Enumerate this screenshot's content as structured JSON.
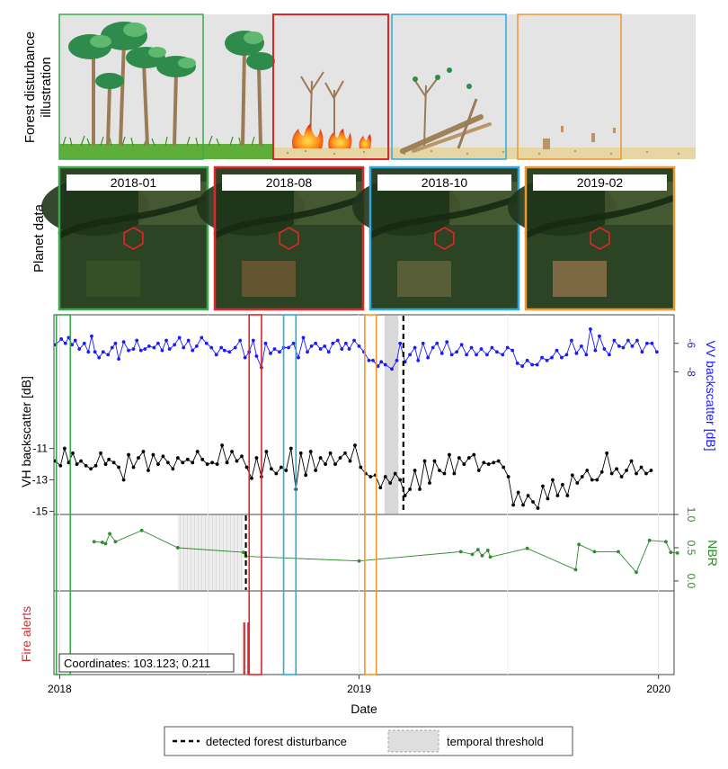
{
  "illustration": {
    "row_label_line1": "Forest disturbance",
    "row_label_line2": "illustration"
  },
  "planet": {
    "row_label": "Planet data",
    "panels": [
      {
        "date": "2018-01",
        "color": "#3aa84a"
      },
      {
        "date": "2018-08",
        "color": "#e0262b"
      },
      {
        "date": "2018-10",
        "color": "#2ea9df"
      },
      {
        "date": "2019-02",
        "color": "#f0962e"
      }
    ]
  },
  "colors": {
    "vh": "#000000",
    "vv": "#1a1aff",
    "nbr": "#2e8b2e",
    "fire": "#e0262b",
    "green_box": "#3aa84a",
    "red_box": "#e0262b",
    "blue_box": "#2ea9df",
    "orange_box": "#f0962e"
  },
  "chart_data": {
    "type": "line",
    "xlabel": "Date",
    "x_ticks": [
      "2018",
      "2019",
      "2020"
    ],
    "xlim": [
      "2017-12-25",
      "2020-01-20"
    ],
    "date_windows": [
      {
        "color": "green",
        "start": "2017-12-28",
        "end": "2018-01-14"
      },
      {
        "color": "red",
        "start": "2018-08-20",
        "end": "2018-09-04"
      },
      {
        "color": "blue",
        "start": "2018-10-01",
        "end": "2018-10-16"
      },
      {
        "color": "orange",
        "start": "2019-01-08",
        "end": "2019-01-22"
      }
    ],
    "sar": {
      "vh_label": "VH backscatter [dB]",
      "vv_label": "VV backscatter [dB]",
      "vh_ticks": [
        -11,
        -13,
        -15
      ],
      "vv_ticks": [
        -6,
        -8
      ],
      "vh_ylim": [
        -15.2,
        -2.5
      ],
      "vv_ylim": [
        -18,
        -4
      ],
      "temporal_threshold": {
        "start": "2019-02-01",
        "end": "2019-02-18"
      },
      "detected_disturbance": "2019-02-24",
      "vv_series": [
        [
          "2017-12-27",
          -6.1
        ],
        [
          "2018-01-03",
          -5.7
        ],
        [
          "2018-01-08",
          -6.0
        ],
        [
          "2018-01-12",
          -5.6
        ],
        [
          "2018-01-16",
          -6.1
        ],
        [
          "2018-01-20",
          -5.8
        ],
        [
          "2018-01-25",
          -6.4
        ],
        [
          "2018-01-31",
          -6.0
        ],
        [
          "2018-02-05",
          -6.6
        ],
        [
          "2018-02-09",
          -5.5
        ],
        [
          "2018-02-13",
          -6.6
        ],
        [
          "2018-02-18",
          -7.0
        ],
        [
          "2018-02-23",
          -6.6
        ],
        [
          "2018-03-01",
          -6.8
        ],
        [
          "2018-03-06",
          -6.3
        ],
        [
          "2018-03-10",
          -6.0
        ],
        [
          "2018-03-14",
          -7.1
        ],
        [
          "2018-03-20",
          -5.9
        ],
        [
          "2018-03-26",
          -6.5
        ],
        [
          "2018-04-01",
          -6.4
        ],
        [
          "2018-04-05",
          -5.8
        ],
        [
          "2018-04-10",
          -6.5
        ],
        [
          "2018-04-15",
          -6.4
        ],
        [
          "2018-04-20",
          -6.2
        ],
        [
          "2018-04-26",
          -6.3
        ],
        [
          "2018-05-01",
          -6.0
        ],
        [
          "2018-05-06",
          -6.5
        ],
        [
          "2018-05-11",
          -5.8
        ],
        [
          "2018-05-15",
          -6.4
        ],
        [
          "2018-05-21",
          -6.1
        ],
        [
          "2018-05-27",
          -5.6
        ],
        [
          "2018-06-01",
          -6.3
        ],
        [
          "2018-06-07",
          -5.8
        ],
        [
          "2018-06-12",
          -6.5
        ],
        [
          "2018-06-17",
          -6.2
        ],
        [
          "2018-06-23",
          -5.6
        ],
        [
          "2018-06-29",
          -6.0
        ],
        [
          "2018-07-05",
          -6.3
        ],
        [
          "2018-07-11",
          -6.8
        ],
        [
          "2018-07-17",
          -6.3
        ],
        [
          "2018-07-21",
          -6.5
        ],
        [
          "2018-07-27",
          -6.6
        ],
        [
          "2018-08-03",
          -6.3
        ],
        [
          "2018-08-09",
          -5.8
        ],
        [
          "2018-08-15",
          -7.0
        ],
        [
          "2018-08-20",
          -6.6
        ],
        [
          "2018-08-25",
          -5.8
        ],
        [
          "2018-08-29",
          -6.9
        ],
        [
          "2018-09-04",
          -7.7
        ],
        [
          "2018-09-09",
          -6.0
        ],
        [
          "2018-09-15",
          -6.7
        ],
        [
          "2018-09-20",
          -6.4
        ],
        [
          "2018-09-26",
          -6.6
        ],
        [
          "2018-10-01",
          -6.3
        ],
        [
          "2018-10-07",
          -6.3
        ],
        [
          "2018-10-13",
          -6.0
        ],
        [
          "2018-10-19",
          -7.0
        ],
        [
          "2018-10-25",
          -5.6
        ],
        [
          "2018-10-30",
          -6.6
        ],
        [
          "2018-11-04",
          -6.2
        ],
        [
          "2018-11-09",
          -6.0
        ],
        [
          "2018-11-15",
          -6.4
        ],
        [
          "2018-11-20",
          -6.2
        ],
        [
          "2018-11-25",
          -6.6
        ],
        [
          "2018-11-30",
          -6.0
        ],
        [
          "2018-12-06",
          -5.8
        ],
        [
          "2018-12-11",
          -6.4
        ],
        [
          "2018-12-16",
          -6.0
        ],
        [
          "2018-12-20",
          -6.4
        ],
        [
          "2018-12-26",
          -5.8
        ],
        [
          "2019-01-01",
          -6.2
        ],
        [
          "2019-01-07",
          -6.6
        ],
        [
          "2019-01-13",
          -7.2
        ],
        [
          "2019-01-18",
          -7.2
        ],
        [
          "2019-01-24",
          -7.6
        ],
        [
          "2019-01-28",
          -7.3
        ],
        [
          "2019-02-02",
          -7.5
        ],
        [
          "2019-02-10",
          -7.8
        ],
        [
          "2019-02-16",
          -7.2
        ],
        [
          "2019-02-20",
          -6.0
        ],
        [
          "2019-02-26",
          -7.3
        ],
        [
          "2019-03-04",
          -6.8
        ],
        [
          "2019-03-10",
          -6.3
        ],
        [
          "2019-03-14",
          -7.2
        ],
        [
          "2019-03-20",
          -6.0
        ],
        [
          "2019-03-26",
          -7.0
        ],
        [
          "2019-04-01",
          -6.3
        ],
        [
          "2019-04-06",
          -6.0
        ],
        [
          "2019-04-12",
          -6.7
        ],
        [
          "2019-04-18",
          -5.9
        ],
        [
          "2019-04-24",
          -6.8
        ],
        [
          "2019-04-30",
          -6.6
        ],
        [
          "2019-05-06",
          -6.1
        ],
        [
          "2019-05-12",
          -6.8
        ],
        [
          "2019-05-18",
          -6.3
        ],
        [
          "2019-05-24",
          -6.8
        ],
        [
          "2019-05-30",
          -6.4
        ],
        [
          "2019-06-06",
          -6.8
        ],
        [
          "2019-06-12",
          -6.3
        ],
        [
          "2019-06-18",
          -6.6
        ],
        [
          "2019-06-25",
          -6.8
        ],
        [
          "2019-07-01",
          -6.3
        ],
        [
          "2019-07-07",
          -6.5
        ],
        [
          "2019-07-13",
          -7.4
        ],
        [
          "2019-07-19",
          -7.6
        ],
        [
          "2019-07-25",
          -7.2
        ],
        [
          "2019-07-31",
          -7.5
        ],
        [
          "2019-08-06",
          -7.5
        ],
        [
          "2019-08-12",
          -7.0
        ],
        [
          "2019-08-18",
          -7.2
        ],
        [
          "2019-08-24",
          -7.0
        ],
        [
          "2019-08-30",
          -6.5
        ],
        [
          "2019-09-05",
          -7.0
        ],
        [
          "2019-09-11",
          -6.8
        ],
        [
          "2019-09-17",
          -5.8
        ],
        [
          "2019-09-23",
          -6.7
        ],
        [
          "2019-09-29",
          -6.2
        ],
        [
          "2019-10-05",
          -6.8
        ],
        [
          "2019-10-10",
          -5.0
        ],
        [
          "2019-10-16",
          -6.5
        ],
        [
          "2019-10-21",
          -5.5
        ],
        [
          "2019-10-27",
          -6.4
        ],
        [
          "2019-11-02",
          -6.8
        ],
        [
          "2019-11-08",
          -5.8
        ],
        [
          "2019-11-14",
          -6.2
        ],
        [
          "2019-11-19",
          -6.3
        ],
        [
          "2019-11-25",
          -5.8
        ],
        [
          "2019-11-30",
          -6.2
        ],
        [
          "2019-12-06",
          -5.8
        ],
        [
          "2019-12-12",
          -6.6
        ],
        [
          "2019-12-18",
          -6.0
        ],
        [
          "2019-12-24",
          -6.0
        ],
        [
          "2019-12-30",
          -6.6
        ]
      ],
      "vh_series": [
        [
          "2017-12-27",
          -11.8
        ],
        [
          "2018-01-02",
          -12.1
        ],
        [
          "2018-01-07",
          -11.0
        ],
        [
          "2018-01-12",
          -11.9
        ],
        [
          "2018-01-17",
          -11.3
        ],
        [
          "2018-01-22",
          -12.0
        ],
        [
          "2018-01-27",
          -11.8
        ],
        [
          "2018-02-02",
          -12.1
        ],
        [
          "2018-02-08",
          -12.3
        ],
        [
          "2018-02-14",
          -12.1
        ],
        [
          "2018-02-20",
          -11.3
        ],
        [
          "2018-02-26",
          -12.0
        ],
        [
          "2018-03-02",
          -11.7
        ],
        [
          "2018-03-08",
          -11.9
        ],
        [
          "2018-03-14",
          -12.2
        ],
        [
          "2018-03-20",
          -13.0
        ],
        [
          "2018-03-26",
          -11.4
        ],
        [
          "2018-04-01",
          -12.2
        ],
        [
          "2018-04-07",
          -11.6
        ],
        [
          "2018-04-13",
          -11.2
        ],
        [
          "2018-04-19",
          -12.4
        ],
        [
          "2018-04-25",
          -11.4
        ],
        [
          "2018-05-01",
          -12.0
        ],
        [
          "2018-05-07",
          -11.5
        ],
        [
          "2018-05-13",
          -11.9
        ],
        [
          "2018-05-19",
          -12.3
        ],
        [
          "2018-05-25",
          -11.6
        ],
        [
          "2018-05-31",
          -11.9
        ],
        [
          "2018-06-06",
          -11.7
        ],
        [
          "2018-06-12",
          -11.9
        ],
        [
          "2018-06-18",
          -11.2
        ],
        [
          "2018-06-24",
          -11.7
        ],
        [
          "2018-06-30",
          -12.0
        ],
        [
          "2018-07-06",
          -11.9
        ],
        [
          "2018-07-12",
          -12.0
        ],
        [
          "2018-07-18",
          -10.8
        ],
        [
          "2018-07-24",
          -11.9
        ],
        [
          "2018-07-30",
          -11.2
        ],
        [
          "2018-08-05",
          -11.8
        ],
        [
          "2018-08-11",
          -11.5
        ],
        [
          "2018-08-17",
          -12.2
        ],
        [
          "2018-08-23",
          -12.9
        ],
        [
          "2018-08-29",
          -11.6
        ],
        [
          "2018-09-04",
          -12.8
        ],
        [
          "2018-09-10",
          -11.2
        ],
        [
          "2018-09-16",
          -12.3
        ],
        [
          "2018-09-22",
          -12.6
        ],
        [
          "2018-09-28",
          -12.2
        ],
        [
          "2018-10-04",
          -12.4
        ],
        [
          "2018-10-10",
          -11.0
        ],
        [
          "2018-10-16",
          -13.6
        ],
        [
          "2018-10-22",
          -11.3
        ],
        [
          "2018-10-28",
          -12.7
        ],
        [
          "2018-11-03",
          -11.2
        ],
        [
          "2018-11-09",
          -12.4
        ],
        [
          "2018-11-15",
          -11.6
        ],
        [
          "2018-11-21",
          -12.0
        ],
        [
          "2018-11-27",
          -11.3
        ],
        [
          "2018-12-03",
          -12.0
        ],
        [
          "2018-12-09",
          -11.6
        ],
        [
          "2018-12-15",
          -11.3
        ],
        [
          "2018-12-21",
          -11.8
        ],
        [
          "2018-12-27",
          -10.8
        ],
        [
          "2019-01-03",
          -12.2
        ],
        [
          "2019-01-09",
          -12.6
        ],
        [
          "2019-01-15",
          -12.8
        ],
        [
          "2019-01-21",
          -12.7
        ],
        [
          "2019-01-27",
          -13.5
        ],
        [
          "2019-02-02",
          -12.8
        ],
        [
          "2019-02-08",
          -13.2
        ],
        [
          "2019-02-14",
          -12.6
        ],
        [
          "2019-02-20",
          -13.0
        ],
        [
          "2019-02-26",
          -14.0
        ],
        [
          "2019-03-04",
          -13.6
        ],
        [
          "2019-03-10",
          -12.4
        ],
        [
          "2019-03-16",
          -13.6
        ],
        [
          "2019-03-22",
          -11.8
        ],
        [
          "2019-03-28",
          -13.2
        ],
        [
          "2019-04-03",
          -11.8
        ],
        [
          "2019-04-09",
          -12.4
        ],
        [
          "2019-04-15",
          -12.6
        ],
        [
          "2019-04-21",
          -11.4
        ],
        [
          "2019-04-27",
          -12.6
        ],
        [
          "2019-05-03",
          -11.6
        ],
        [
          "2019-05-09",
          -12.0
        ],
        [
          "2019-05-15",
          -11.6
        ],
        [
          "2019-05-21",
          -11.4
        ],
        [
          "2019-05-27",
          -12.4
        ],
        [
          "2019-06-02",
          -11.9
        ],
        [
          "2019-06-08",
          -12.0
        ],
        [
          "2019-06-14",
          -11.9
        ],
        [
          "2019-06-20",
          -11.8
        ],
        [
          "2019-06-26",
          -12.2
        ],
        [
          "2019-07-02",
          -12.8
        ],
        [
          "2019-07-08",
          -14.6
        ],
        [
          "2019-07-14",
          -13.8
        ],
        [
          "2019-07-20",
          -14.6
        ],
        [
          "2019-07-26",
          -14.0
        ],
        [
          "2019-08-01",
          -14.4
        ],
        [
          "2019-08-07",
          -14.8
        ],
        [
          "2019-08-13",
          -13.4
        ],
        [
          "2019-08-19",
          -14.2
        ],
        [
          "2019-08-25",
          -13.0
        ],
        [
          "2019-08-31",
          -14.0
        ],
        [
          "2019-09-06",
          -13.3
        ],
        [
          "2019-09-12",
          -14.0
        ],
        [
          "2019-09-18",
          -12.7
        ],
        [
          "2019-09-24",
          -13.2
        ],
        [
          "2019-09-30",
          -12.8
        ],
        [
          "2019-10-06",
          -12.4
        ],
        [
          "2019-10-12",
          -13.0
        ],
        [
          "2019-10-18",
          -13.0
        ],
        [
          "2019-10-24",
          -12.5
        ],
        [
          "2019-10-30",
          -11.3
        ],
        [
          "2019-11-05",
          -12.6
        ],
        [
          "2019-11-11",
          -12.3
        ],
        [
          "2019-11-17",
          -12.8
        ],
        [
          "2019-11-23",
          -12.4
        ],
        [
          "2019-11-29",
          -11.8
        ],
        [
          "2019-12-05",
          -12.6
        ],
        [
          "2019-12-11",
          -12.2
        ],
        [
          "2019-12-17",
          -12.6
        ],
        [
          "2019-12-23",
          -12.4
        ]
      ]
    },
    "nbr": {
      "label": "NBR",
      "ticks": [
        "1.0",
        "0.5",
        "0.0"
      ],
      "ylim": [
        -0.15,
        1.0
      ],
      "temporal_threshold": {
        "start": "2018-05-25",
        "end": "2018-08-13"
      },
      "detected_disturbance": "2018-08-16",
      "series": [
        [
          "2018-02-12",
          0.59
        ],
        [
          "2018-02-22",
          0.58
        ],
        [
          "2018-02-26",
          0.56
        ],
        [
          "2018-03-03",
          0.71
        ],
        [
          "2018-03-10",
          0.59
        ],
        [
          "2018-04-11",
          0.76
        ],
        [
          "2018-05-25",
          0.5
        ],
        [
          "2018-08-13",
          0.43
        ],
        [
          "2018-08-16",
          0.37
        ],
        [
          "2019-01-01",
          0.3
        ],
        [
          "2019-05-05",
          0.44
        ],
        [
          "2019-05-19",
          0.4
        ],
        [
          "2019-05-26",
          0.47
        ],
        [
          "2019-05-31",
          0.38
        ],
        [
          "2019-06-07",
          0.46
        ],
        [
          "2019-06-10",
          0.36
        ],
        [
          "2019-07-25",
          0.49
        ],
        [
          "2019-09-22",
          0.17
        ],
        [
          "2019-09-26",
          0.55
        ],
        [
          "2019-10-15",
          0.44
        ],
        [
          "2019-11-13",
          0.44
        ],
        [
          "2019-12-05",
          0.13
        ],
        [
          "2019-12-21",
          0.61
        ],
        [
          "2020-01-10",
          0.59
        ],
        [
          "2020-01-16",
          0.43
        ],
        [
          "2020-01-24",
          0.42
        ]
      ]
    },
    "fire": {
      "label": "Fire alerts",
      "alerts": [
        "2018-08-14",
        "2018-08-19"
      ],
      "coordinates_text": "Coordinates: 103.123; 0.211"
    },
    "legend": {
      "detected": "detected forest disturbance",
      "threshold": "temporal threshold"
    }
  }
}
